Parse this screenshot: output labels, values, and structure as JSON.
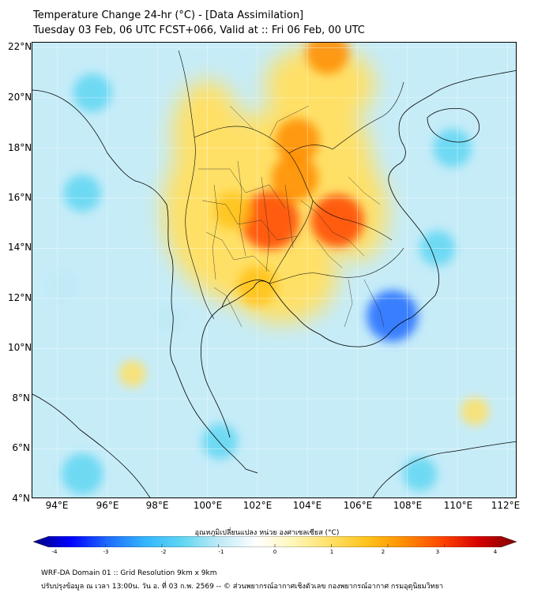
{
  "header": {
    "title_line1": "Temperature Change 24-hr (°C) - [Data Assimilation]",
    "title_line2": "Tuesday 03 Feb, 06 UTC FCST+066, Valid at :: Fri 06 Feb, 00 UTC"
  },
  "map": {
    "lat_labels": [
      "22°N",
      "20°N",
      "18°N",
      "16°N",
      "14°N",
      "12°N",
      "10°N",
      "8°N",
      "6°N",
      "4°N"
    ],
    "lon_labels": [
      "94°E",
      "96°E",
      "98°E",
      "100°E",
      "102°E",
      "104°E",
      "106°E",
      "108°E",
      "110°E",
      "112°E"
    ],
    "extent": {
      "lon_min": 93.0,
      "lon_max": 112.4,
      "lat_min": 4.0,
      "lat_max": 22.2
    },
    "warm_spots": [
      {
        "lon": 102.5,
        "lat": 15.1,
        "value": 3.0
      },
      {
        "lon": 105.2,
        "lat": 15.1,
        "value": 2.6
      },
      {
        "lon": 103.5,
        "lat": 16.8,
        "value": 2.2
      },
      {
        "lon": 103.6,
        "lat": 18.3,
        "value": 2.0
      },
      {
        "lon": 104.8,
        "lat": 21.8,
        "value": 1.9
      },
      {
        "lon": 102.0,
        "lat": 12.5,
        "value": 1.7
      },
      {
        "lon": 101.0,
        "lat": 15.5,
        "value": 1.5
      },
      {
        "lon": 97.0,
        "lat": 9.0,
        "value": 0.8
      },
      {
        "lon": 110.7,
        "lat": 7.5,
        "value": 0.9
      }
    ],
    "cool_spots": [
      {
        "lon": 107.4,
        "lat": 11.3,
        "value": -2.5
      },
      {
        "lon": 95.4,
        "lat": 20.2,
        "value": -1.6
      },
      {
        "lon": 95.0,
        "lat": 16.2,
        "value": -1.5
      },
      {
        "lon": 109.8,
        "lat": 18.0,
        "value": -1.6
      },
      {
        "lon": 109.2,
        "lat": 14.0,
        "value": -1.4
      },
      {
        "lon": 94.2,
        "lat": 12.5,
        "value": -1.2
      },
      {
        "lon": 100.5,
        "lat": 6.3,
        "value": -1.4
      },
      {
        "lon": 95.0,
        "lat": 5.0,
        "value": -1.8
      },
      {
        "lon": 108.5,
        "lat": 5.0,
        "value": -1.3
      },
      {
        "lon": 98.5,
        "lat": 11.2,
        "value": -1.0
      }
    ]
  },
  "colorbar": {
    "title": "อุณหภูมิเปลี่ยนแปลง หน่วย องศาเซลเซียส (°C)",
    "ticks": [
      "-4",
      "-3",
      "-2",
      "-1",
      "0",
      "1",
      "2",
      "3",
      "4"
    ],
    "min": -4,
    "max": 4,
    "colors": [
      "#00007f",
      "#0000ff",
      "#1e6bff",
      "#33b5ff",
      "#5fd6f2",
      "#bfeaf7",
      "#ffffff",
      "#fff7b8",
      "#ffe066",
      "#ffc21a",
      "#ff8c00",
      "#ff4500",
      "#d40000",
      "#7f0000"
    ]
  },
  "footer": {
    "line1": "WRF-DA Domain 01 :: Grid Resolution 9km x 9km",
    "line2": "ปรับปรุงข้อมูล ณ เวลา 13:00น. วัน อ. ที่ 03 ก.พ. 2569 -- © ส่วนพยากรณ์อากาศเชิงตัวเลข กองพยากรณ์อากาศ กรมอุตุนิยมวิทยา"
  }
}
